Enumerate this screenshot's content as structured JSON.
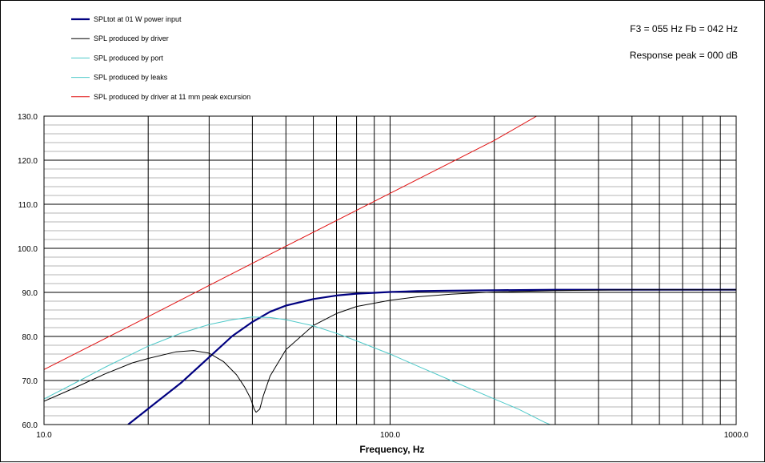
{
  "annotations": {
    "line1": "F3 = 055 Hz  Fb = 042 Hz",
    "line2": "Response  peak = 000 dB"
  },
  "chart_data": {
    "type": "line",
    "title": "",
    "xlabel": "Frequency, Hz",
    "ylabel": "",
    "xscale": "log",
    "xlim": [
      10,
      1000
    ],
    "ylim": [
      60,
      130
    ],
    "grid": true,
    "legend_position": "top-left",
    "x_ticks": [
      {
        "value": 10,
        "label": "10.0"
      },
      {
        "value": 100,
        "label": "100.0"
      },
      {
        "value": 1000,
        "label": "1000.0"
      }
    ],
    "y_ticks": [
      {
        "value": 60,
        "label": "60.0"
      },
      {
        "value": 70,
        "label": "70.0"
      },
      {
        "value": 80,
        "label": "80.0"
      },
      {
        "value": 90,
        "label": "90.0"
      },
      {
        "value": 100,
        "label": "100.0"
      },
      {
        "value": 110,
        "label": "110.0"
      },
      {
        "value": 120,
        "label": "120.0"
      },
      {
        "value": 130,
        "label": "130.0"
      }
    ],
    "series": [
      {
        "name": "SPLtot at 01 W power input",
        "color": "#000080",
        "width": 2.2,
        "points": [
          [
            17.5,
            60
          ],
          [
            20,
            63.6
          ],
          [
            25,
            69.6
          ],
          [
            30,
            75.3
          ],
          [
            35,
            80.1
          ],
          [
            40,
            83.3
          ],
          [
            45,
            85.6
          ],
          [
            50,
            87
          ],
          [
            60,
            88.5
          ],
          [
            70,
            89.3
          ],
          [
            80,
            89.7
          ],
          [
            100,
            90.1
          ],
          [
            120,
            90.3
          ],
          [
            150,
            90.4
          ],
          [
            200,
            90.5
          ],
          [
            300,
            90.6
          ],
          [
            500,
            90.6
          ],
          [
            1000,
            90.6
          ]
        ]
      },
      {
        "name": "SPL produced by driver",
        "color": "#000000",
        "width": 1,
        "points": [
          [
            10,
            65.3
          ],
          [
            12,
            68
          ],
          [
            15,
            71.5
          ],
          [
            18,
            74
          ],
          [
            20,
            75
          ],
          [
            24,
            76.5
          ],
          [
            27,
            76.8
          ],
          [
            30,
            76.2
          ],
          [
            33,
            74.3
          ],
          [
            36,
            71.3
          ],
          [
            38,
            68.5
          ],
          [
            39.5,
            66
          ],
          [
            40.5,
            63.5
          ],
          [
            41,
            62.8
          ],
          [
            42,
            63.5
          ],
          [
            43,
            66.5
          ],
          [
            45,
            71
          ],
          [
            50,
            77
          ],
          [
            60,
            82.5
          ],
          [
            70,
            85.2
          ],
          [
            80,
            86.8
          ],
          [
            100,
            88.2
          ],
          [
            120,
            89
          ],
          [
            150,
            89.6
          ],
          [
            200,
            90.1
          ],
          [
            300,
            90.4
          ],
          [
            500,
            90.6
          ],
          [
            1000,
            90.6
          ]
        ]
      },
      {
        "name": "SPL produced by port",
        "color": "#4ec9c9",
        "width": 1,
        "points": [
          [
            10,
            65.8
          ],
          [
            12,
            69
          ],
          [
            15,
            73
          ],
          [
            20,
            77.8
          ],
          [
            25,
            80.8
          ],
          [
            30,
            82.7
          ],
          [
            35,
            83.8
          ],
          [
            40,
            84.4
          ],
          [
            45,
            84.3
          ],
          [
            50,
            83.8
          ],
          [
            60,
            82.4
          ],
          [
            70,
            80.7
          ],
          [
            80,
            79
          ],
          [
            100,
            76
          ],
          [
            120,
            73.3
          ],
          [
            150,
            70
          ],
          [
            200,
            65.8
          ],
          [
            235,
            63.5
          ],
          [
            280,
            60.5
          ],
          [
            290,
            60
          ]
        ]
      },
      {
        "name": "SPL produced by leaks",
        "color": "#4ec9c9",
        "width": 1,
        "points": []
      },
      {
        "name": "SPL produced by driver at 11 mm peak excursion",
        "color": "#e01010",
        "width": 1,
        "points": [
          [
            10,
            72.5
          ],
          [
            20,
            84.5
          ],
          [
            50,
            100.5
          ],
          [
            100,
            112.5
          ],
          [
            200,
            124.5
          ],
          [
            265,
            130
          ]
        ]
      }
    ]
  }
}
